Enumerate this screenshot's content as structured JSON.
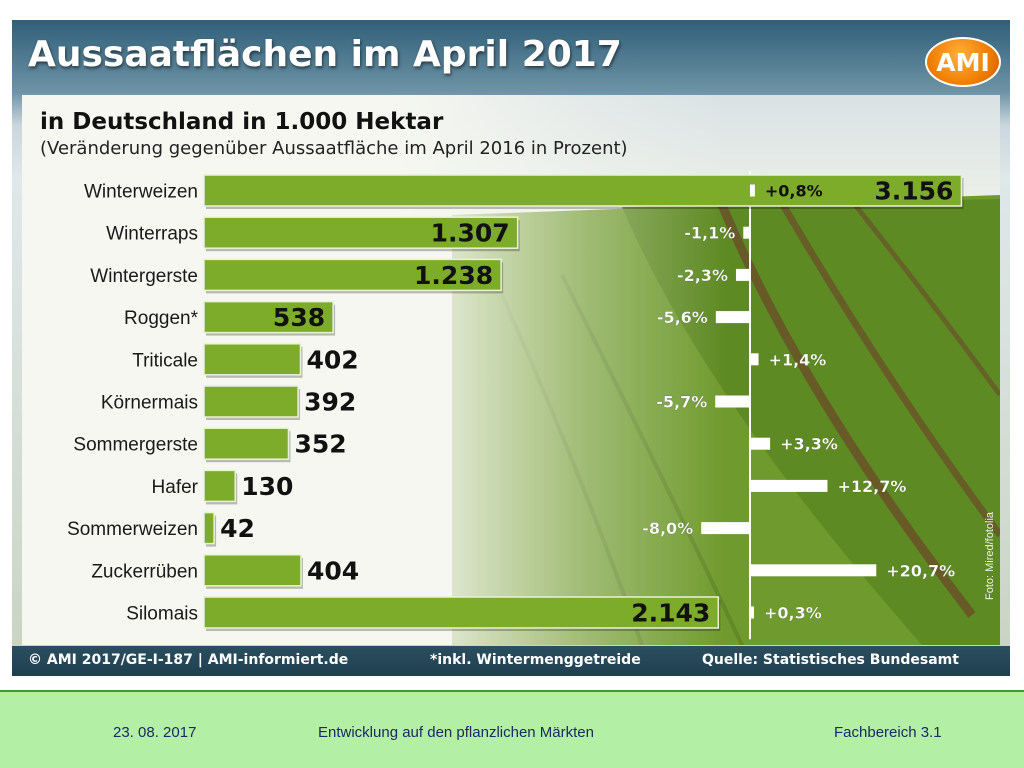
{
  "graphic": {
    "title": "Aussaatflächen im April 2017",
    "logo": "AMI",
    "subtitle": "in Deutschland in 1.000 Hektar",
    "subtitle2": "(Veränderung gegenüber Aussaatfläche im April 2016 in Prozent)",
    "photo_credit": "Foto: Mired/fotolia",
    "footer_left": "© AMI 2017/GE-I-187 | AMI-informiert.de",
    "footer_mid": "*inkl. Wintermenggetreide",
    "footer_right": "Quelle: Statistisches Bundesamt"
  },
  "chart_data": {
    "type": "bar",
    "orientation": "horizontal",
    "categories": [
      "Winterweizen",
      "Winterraps",
      "Wintergerste",
      "Roggen*",
      "Triticale",
      "Körnermais",
      "Sommergerste",
      "Hafer",
      "Sommerweizen",
      "Zuckerrüben",
      "Silomais"
    ],
    "values": [
      3156,
      1307,
      1238,
      538,
      402,
      392,
      352,
      130,
      42,
      404,
      2143
    ],
    "value_labels": [
      "3.156",
      "1.307",
      "1.238",
      "538",
      "402",
      "392",
      "352",
      "130",
      "42",
      "404",
      "2.143"
    ],
    "change_percent": [
      0.8,
      -1.1,
      -2.3,
      -5.6,
      1.4,
      -5.7,
      3.3,
      12.7,
      -8.0,
      20.7,
      0.3
    ],
    "change_labels": [
      "+0,8%",
      "-1,1%",
      "-2,3%",
      "-5,6%",
      "+1,4%",
      "-5,7%",
      "+3,3%",
      "+12,7%",
      "-8,0%",
      "+20,7%",
      "+0,3%"
    ],
    "bar_color": "#7dab2a",
    "change_bar_color": "#ffffff"
  },
  "footer": {
    "date": "23. 08. 2017",
    "topic": "Entwicklung auf den pflanzlichen Märkten",
    "department": "Fachbereich 3.1"
  }
}
